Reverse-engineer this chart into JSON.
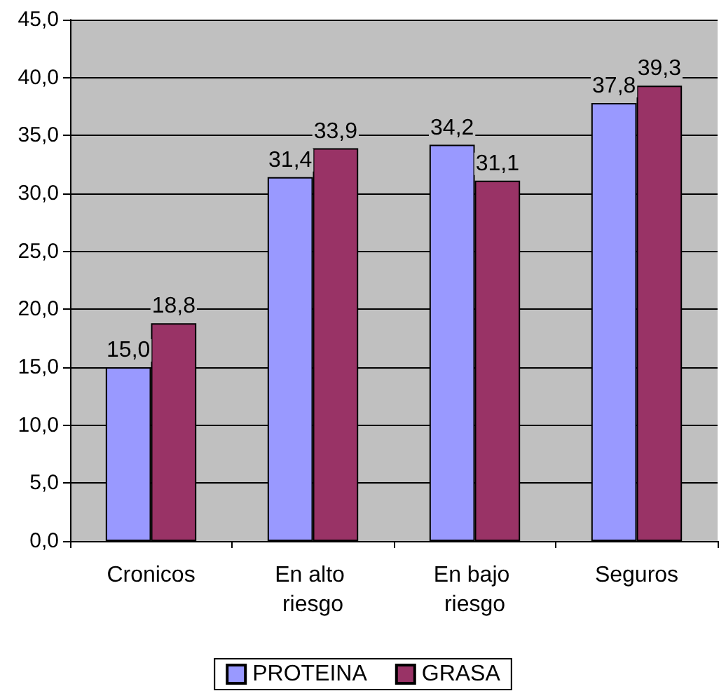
{
  "chart_data": {
    "type": "bar",
    "categories": [
      "Cronicos",
      "En alto riesgo",
      "En bajo riesgo",
      "Seguros"
    ],
    "series": [
      {
        "name": "PROTEINA",
        "color": "#9999ff",
        "values": [
          15.0,
          31.4,
          34.2,
          37.8
        ],
        "value_labels": [
          "15,0",
          "31,4",
          "34,2",
          "37,8"
        ]
      },
      {
        "name": "GRASA",
        "color": "#993366",
        "values": [
          18.8,
          33.9,
          31.1,
          39.3
        ],
        "value_labels": [
          "18,8",
          "33,9",
          "31,1",
          "39,3"
        ]
      }
    ],
    "ylim": [
      0,
      45
    ],
    "yticks": [
      {
        "value": 0,
        "label": "0,0"
      },
      {
        "value": 5,
        "label": "5,0"
      },
      {
        "value": 10,
        "label": "10,0"
      },
      {
        "value": 15,
        "label": "15,0"
      },
      {
        "value": 20,
        "label": "20,0"
      },
      {
        "value": 25,
        "label": "25,0"
      },
      {
        "value": 30,
        "label": "30,0"
      },
      {
        "value": 35,
        "label": "35,0"
      },
      {
        "value": 40,
        "label": "40,0"
      },
      {
        "value": 45,
        "label": "45,0"
      }
    ],
    "grid": "y",
    "legend": "bottom"
  }
}
